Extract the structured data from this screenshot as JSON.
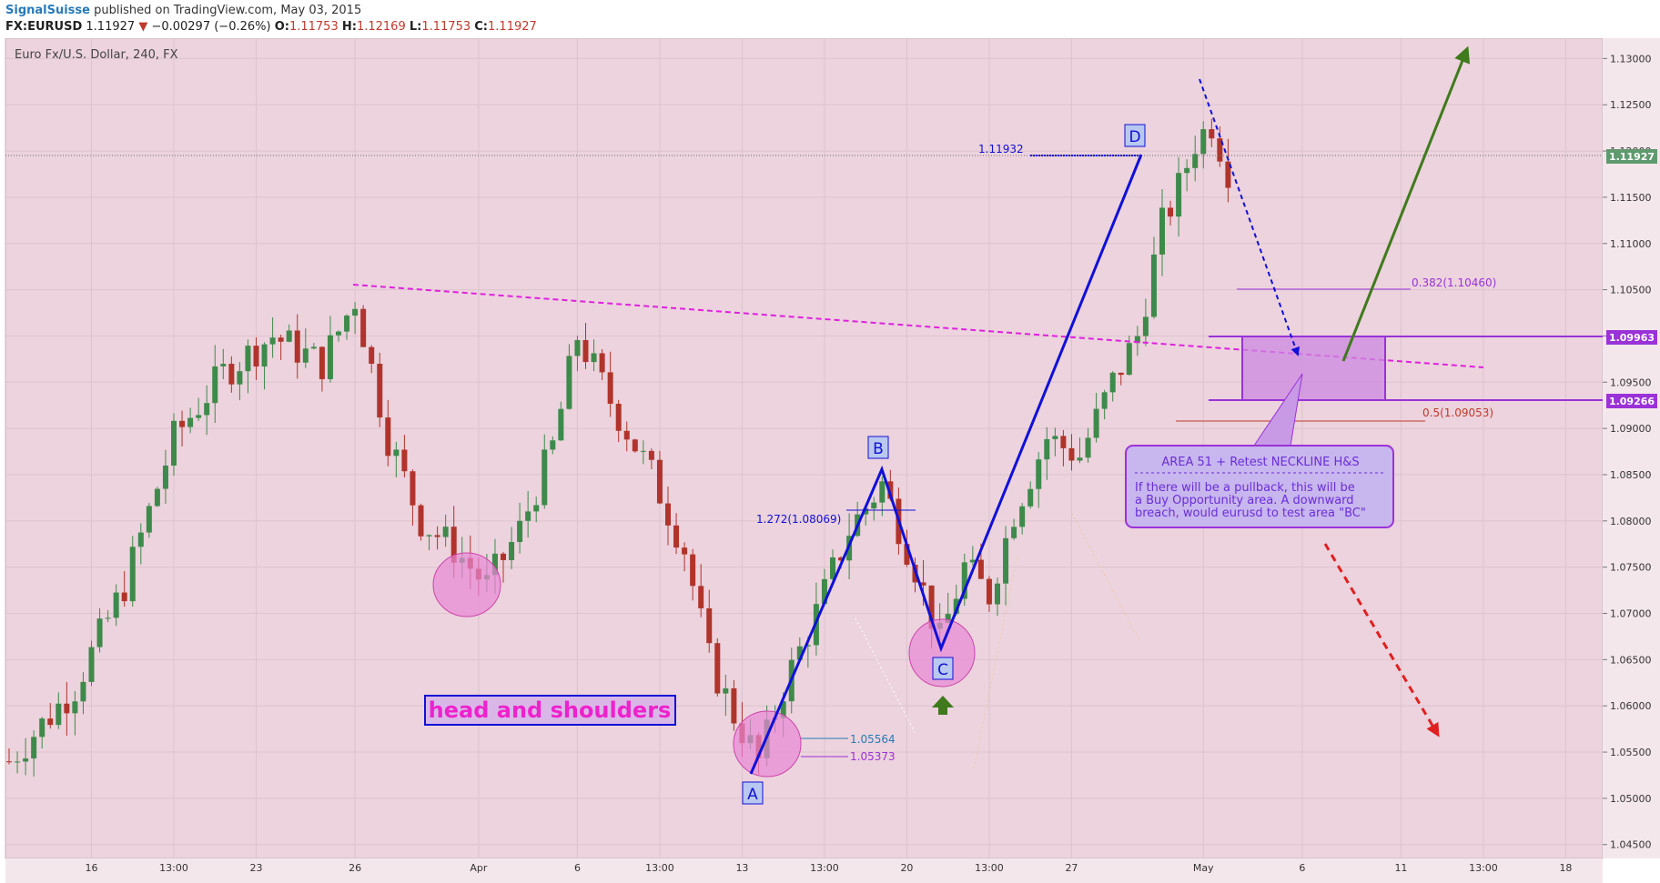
{
  "header": {
    "author": "SignalSuisse",
    "published_text": "published on TradingView.com, May 03, 2015",
    "symbol": "FX:EURUSD",
    "last": "1.11927",
    "change": "−0.00297 (−0.26%)",
    "o_label": "O:",
    "o_value": "1.11753",
    "h_label": "H:",
    "h_value": "1.12169",
    "l_label": "L:",
    "l_value": "1.11753",
    "c_label": "C:",
    "c_value": "1.11927"
  },
  "chart_data": {
    "type": "candlestick",
    "title": "Euro Fx/U.S. Dollar, 240, FX",
    "interval": "240",
    "y_ticks": [
      "1.13000",
      "1.12500",
      "1.12000",
      "1.11500",
      "1.11000",
      "1.10500",
      "1.10000",
      "1.09500",
      "1.09000",
      "1.08500",
      "1.08000",
      "1.07500",
      "1.07000",
      "1.06500",
      "1.06000",
      "1.05500",
      "1.05000",
      "1.04500"
    ],
    "ylim": [
      1.0435,
      1.1322
    ],
    "x_ticks": [
      {
        "label": "16",
        "bar": 10
      },
      {
        "label": "13:00",
        "bar": 20
      },
      {
        "label": "23",
        "bar": 30
      },
      {
        "label": "26",
        "bar": 42
      },
      {
        "label": "Apr",
        "bar": 57
      },
      {
        "label": "6",
        "bar": 69
      },
      {
        "label": "13:00",
        "bar": 79
      },
      {
        "label": "13",
        "bar": 89
      },
      {
        "label": "13:00",
        "bar": 99
      },
      {
        "label": "20",
        "bar": 109
      },
      {
        "label": "13:00",
        "bar": 119
      },
      {
        "label": "27",
        "bar": 129
      },
      {
        "label": "May",
        "bar": 145
      },
      {
        "label": "6",
        "bar": 157
      },
      {
        "label": "11",
        "bar": 169
      },
      {
        "label": "13:00",
        "bar": 179
      },
      {
        "label": "18",
        "bar": 189
      }
    ],
    "grid": true,
    "key_path": [
      [
        0,
        1.054
      ],
      [
        8,
        1.062
      ],
      [
        14,
        1.073
      ],
      [
        20,
        1.089
      ],
      [
        26,
        1.096
      ],
      [
        32,
        1.1
      ],
      [
        38,
        1.097
      ],
      [
        42,
        1.104
      ],
      [
        46,
        1.089
      ],
      [
        50,
        1.08
      ],
      [
        54,
        1.077
      ],
      [
        58,
        1.073
      ],
      [
        62,
        1.079
      ],
      [
        66,
        1.088
      ],
      [
        69,
        1.1
      ],
      [
        73,
        1.093
      ],
      [
        78,
        1.085
      ],
      [
        82,
        1.077
      ],
      [
        85,
        1.065
      ],
      [
        88,
        1.059
      ],
      [
        91,
        1.054
      ],
      [
        94,
        1.062
      ],
      [
        98,
        1.07
      ],
      [
        102,
        1.079
      ],
      [
        106,
        1.084
      ],
      [
        110,
        1.075
      ],
      [
        113,
        1.067
      ],
      [
        116,
        1.075
      ],
      [
        119,
        1.072
      ],
      [
        122,
        1.081
      ],
      [
        126,
        1.089
      ],
      [
        130,
        1.087
      ],
      [
        134,
        1.095
      ],
      [
        137,
        1.1
      ],
      [
        140,
        1.112
      ],
      [
        142,
        1.116
      ],
      [
        144,
        1.121
      ],
      [
        146,
        1.123
      ],
      [
        148,
        1.118
      ]
    ],
    "last_price": "1.11927",
    "zone_top": "1.09963",
    "zone_bottom": "1.09266",
    "fib_382": "0.382(1.10460)",
    "fib_05": "0.5(1.09053)",
    "fib_1272": "1.272(1.08069)",
    "d_level": "1.11932",
    "a_level_1": "1.05564",
    "a_level_2": "1.05373",
    "points": {
      "A": "A",
      "B": "B",
      "C": "C",
      "D": "D"
    },
    "pattern_label": "head and shoulders",
    "note_title": "AREA 51 + Retest NECKLINE H&S",
    "note_body": [
      "If there will be a pullback, this will be",
      "a Buy Opportunity area. A downward",
      "breach, would eurusd to test area \"BC\""
    ],
    "colors": {
      "background": "#ecd3dd",
      "up": "#3e8a4a",
      "down": "#b0342b",
      "grid": "#dcc3ce",
      "abcd": "#1010d8",
      "neckline": "#e020e0",
      "zone": "#cc88e0",
      "zone_edge": "#9a32d8",
      "green_arrow": "#3f7a1c",
      "red_arrow": "#e02020",
      "label_magenta": "#ee22cc"
    }
  }
}
